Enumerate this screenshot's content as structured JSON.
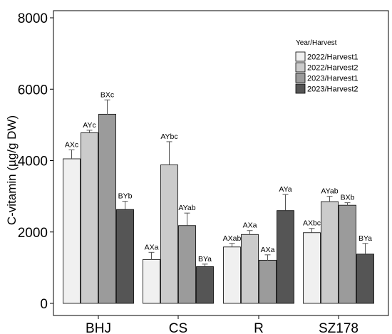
{
  "chart_data": {
    "type": "bar",
    "ylabel": "C-vitamin (µg/g DW)",
    "ylim": [
      0,
      8000
    ],
    "yticks": [
      0,
      2000,
      4000,
      6000,
      8000
    ],
    "categories": [
      "BHJ",
      "CS",
      "R",
      "SZ178"
    ],
    "legend_title": "Year/Harvest",
    "legend_position": "top-right",
    "grid": false,
    "series": [
      {
        "name": "2022/Harvest1",
        "color": "#f0f0f0",
        "values": [
          4050,
          1230,
          1580,
          1980
        ],
        "errors": [
          250,
          200,
          100,
          120
        ],
        "labels": [
          "AXc",
          "AXa",
          "AXab",
          "AXbc"
        ]
      },
      {
        "name": "2022/Harvest2",
        "color": "#cbcbcb",
        "values": [
          4780,
          3880,
          1930,
          2850
        ],
        "errors": [
          70,
          650,
          110,
          150
        ],
        "labels": [
          "AYc",
          "AYbc",
          "AXa",
          "AYab"
        ]
      },
      {
        "name": "2023/Harvest1",
        "color": "#9b9b9b",
        "values": [
          5300,
          2180,
          1210,
          2750
        ],
        "errors": [
          400,
          350,
          150,
          70
        ],
        "labels": [
          "BXc",
          "AYab",
          "AXa",
          "BXb"
        ]
      },
      {
        "name": "2023/Harvest2",
        "color": "#555555",
        "values": [
          2630,
          1030,
          2600,
          1380
        ],
        "errors": [
          230,
          70,
          450,
          300
        ],
        "labels": [
          "BYb",
          "BYa",
          "AYa",
          "BYa"
        ]
      }
    ]
  }
}
